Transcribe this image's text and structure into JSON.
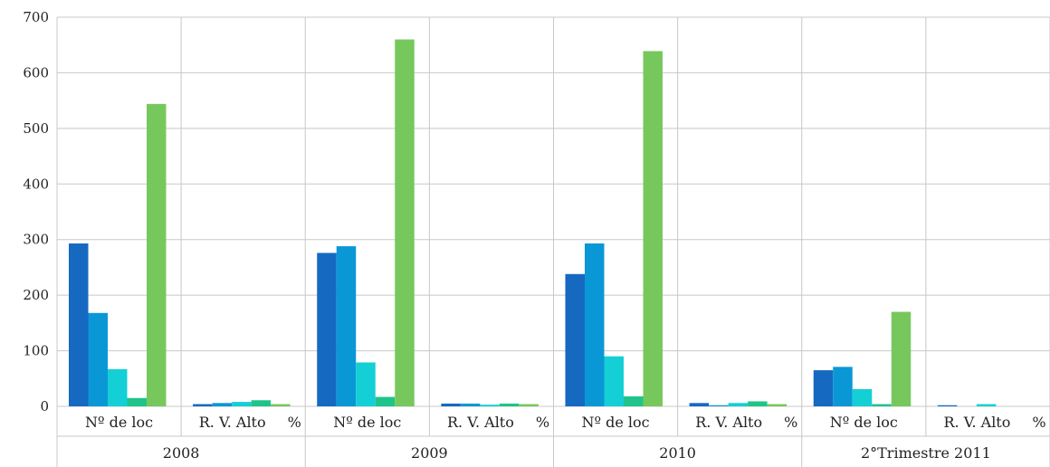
{
  "chart_data": {
    "type": "bar",
    "ylim": [
      0,
      700
    ],
    "yticks": [
      0,
      100,
      200,
      300,
      400,
      500,
      600,
      700
    ],
    "grid": true,
    "groups": [
      {
        "label": "2008",
        "categories": [
          {
            "label": "Nº de loc",
            "values": [
              293,
              168,
              67,
              15,
              544
            ]
          },
          {
            "label": "R. V. Alto",
            "values": [
              4,
              6,
              8,
              11,
              4
            ]
          }
        ]
      },
      {
        "label": "2009",
        "categories": [
          {
            "label": "Nº de loc",
            "values": [
              276,
              288,
              79,
              17,
              660
            ]
          },
          {
            "label": "R. V. Alto",
            "values": [
              5,
              5,
              3,
              5,
              4
            ]
          }
        ]
      },
      {
        "label": "2010",
        "categories": [
          {
            "label": "Nº de loc",
            "values": [
              238,
              293,
              90,
              18,
              639
            ]
          },
          {
            "label": "R. V. Alto",
            "values": [
              6,
              2,
              6,
              9,
              4
            ]
          }
        ]
      },
      {
        "label": "2°Trimestre 2011",
        "categories": [
          {
            "label": "Nº de loc",
            "values": [
              65,
              71,
              31,
              4,
              170
            ]
          },
          {
            "label": "R. V. Alto",
            "values": [
              2,
              0,
              4,
              0,
              0
            ]
          }
        ]
      }
    ],
    "category_suffix": "%",
    "series_colors": [
      "#1569c1",
      "#0a97d6",
      "#14cfd6",
      "#1fc48a",
      "#77c85c"
    ]
  }
}
